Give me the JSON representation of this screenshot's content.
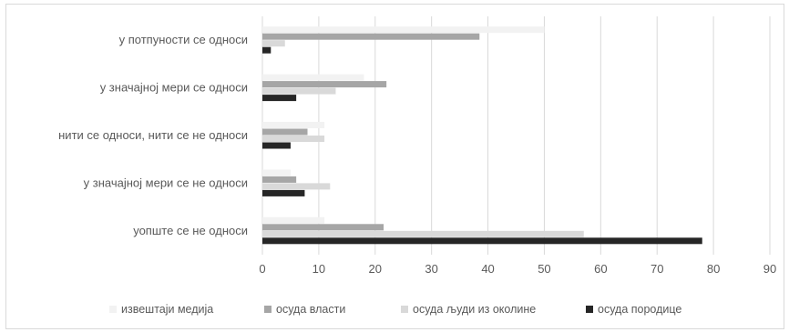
{
  "chart_data": {
    "type": "bar",
    "orientation": "horizontal",
    "categories": [
      "у потпуности се односи",
      "у значајној мери се односи",
      "нити се односи, нити се не односи",
      "у значајној мери се не односи",
      "уопште се не односи"
    ],
    "series": [
      {
        "name": "извештаји медија",
        "color": "#f2f2f2",
        "values": [
          50,
          18,
          11,
          5,
          11
        ]
      },
      {
        "name": "осуда власти",
        "color": "#a6a6a6",
        "values": [
          38.5,
          22,
          8,
          6,
          21.5
        ]
      },
      {
        "name": "осуда људи из околине",
        "color": "#d9d9d9",
        "values": [
          4,
          13,
          11,
          12,
          57
        ]
      },
      {
        "name": "осуда породице",
        "color": "#262626",
        "values": [
          1.5,
          6,
          5,
          7.5,
          78
        ]
      }
    ],
    "xlim": [
      0,
      90
    ],
    "xticks": [
      "0",
      "10",
      "20",
      "30",
      "40",
      "50",
      "60",
      "70",
      "80",
      "90"
    ],
    "grid": true,
    "legend_position": "bottom"
  }
}
